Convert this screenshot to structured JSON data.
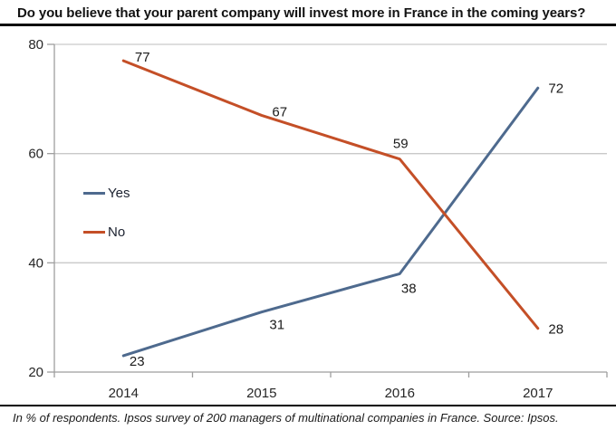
{
  "header": {
    "title": "Do you believe that your parent company will invest more in France in the coming years?"
  },
  "chart_data": {
    "type": "line",
    "title": "Do you believe that your parent company will invest more in France in the coming years?",
    "categories": [
      "2014",
      "2015",
      "2016",
      "2017"
    ],
    "series": [
      {
        "name": "Yes",
        "values": [
          23,
          31,
          38,
          72
        ],
        "color": "#4e6a8e",
        "label_offsets": [
          [
            15,
            11
          ],
          [
            17,
            19
          ],
          [
            10,
            21
          ],
          [
            20,
            5
          ]
        ]
      },
      {
        "name": "No",
        "values": [
          77,
          67,
          59,
          28
        ],
        "color": "#c44f27",
        "label_offsets": [
          [
            21,
            1
          ],
          [
            20,
            1
          ],
          [
            1,
            -12
          ],
          [
            20,
            6
          ]
        ]
      }
    ],
    "xlabel": "",
    "ylabel": "",
    "ylim": [
      20,
      80
    ],
    "yticks": [
      20,
      40,
      60,
      80
    ],
    "grid": true,
    "legend_position": "inside-left",
    "colors": {
      "grid": "#c9c9c9",
      "axis": "#9e9e9e",
      "tick_text": "#262626",
      "data_label": "#1a1a1a"
    }
  },
  "footer": {
    "note": "In % of respondents. Ipsos survey of 200 managers of multinational companies in France. Source: Ipsos."
  }
}
